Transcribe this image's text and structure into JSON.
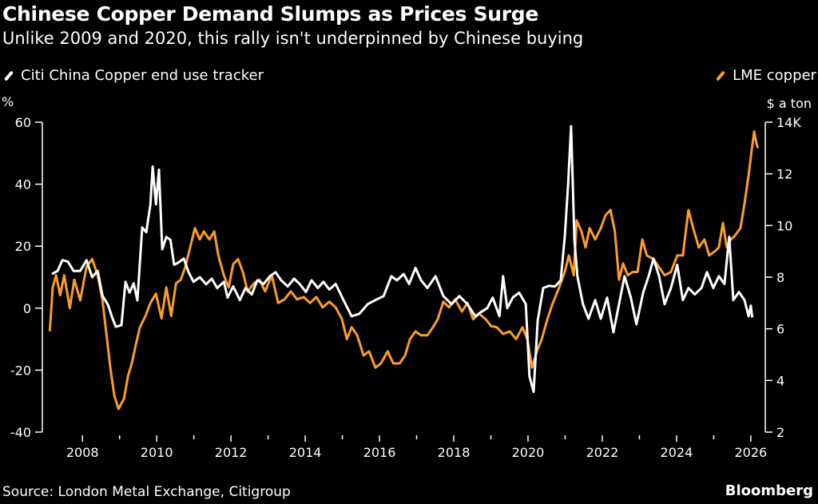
{
  "chart_data": {
    "type": "line",
    "title": "Chinese Copper Demand Slumps as Prices Surge",
    "subtitle": "Unlike 2009 and 2020, this rally isn't underpinned by Chinese buying",
    "source": "Source: London Metal Exchange, Citigroup",
    "brand": "Bloomberg",
    "xlim": [
      2006.92,
      2026.39
    ],
    "x_ticks": [
      2008,
      2010,
      2012,
      2014,
      2016,
      2018,
      2020,
      2022,
      2024,
      2026
    ],
    "x_tick_labels": [
      "2008",
      "2010",
      "2012",
      "2014",
      "2016",
      "2018",
      "2020",
      "2022",
      "2024",
      "2026"
    ],
    "x_minor_ticks": [
      2009,
      2011,
      2013,
      2015,
      2017,
      2019,
      2021,
      2023,
      2025
    ],
    "left_axis": {
      "unit": "%",
      "ylim": [
        -40,
        60
      ],
      "ticks": [
        -40,
        -20,
        0,
        20,
        40,
        60
      ],
      "tick_labels": [
        "-40",
        "-20",
        "0",
        "20",
        "40",
        "60"
      ]
    },
    "right_axis": {
      "unit": "$ a ton",
      "ylim": [
        2,
        14
      ],
      "ticks": [
        2,
        4,
        6,
        8,
        10,
        12,
        14
      ],
      "tick_labels": [
        "2",
        "4",
        "6",
        "8",
        "10",
        "12",
        "14K"
      ]
    },
    "grid": false,
    "legend_placement": "top",
    "series": [
      {
        "name": "Citi China Copper end use tracker",
        "axis": "left",
        "color": "#ffffff",
        "x": [
          2007.18,
          2007.33,
          2007.46,
          2007.61,
          2007.76,
          2007.94,
          2008.11,
          2008.26,
          2008.41,
          2008.54,
          2008.69,
          2008.8,
          2008.9,
          2009.05,
          2009.16,
          2009.27,
          2009.38,
          2009.48,
          2009.61,
          2009.72,
          2009.83,
          2009.89,
          2009.98,
          2010.06,
          2010.15,
          2010.26,
          2010.37,
          2010.47,
          2010.58,
          2010.73,
          2010.86,
          2010.99,
          2011.16,
          2011.33,
          2011.48,
          2011.63,
          2011.81,
          2011.91,
          2012.06,
          2012.24,
          2012.39,
          2012.56,
          2012.71,
          2012.88,
          2013.05,
          2013.2,
          2013.35,
          2013.53,
          2013.7,
          2013.85,
          2014.02,
          2014.17,
          2014.34,
          2014.49,
          2014.65,
          2014.82,
          2015.03,
          2015.25,
          2015.46,
          2015.68,
          2015.89,
          2016.11,
          2016.32,
          2016.47,
          2016.65,
          2016.8,
          2016.97,
          2017.12,
          2017.29,
          2017.51,
          2017.72,
          2017.94,
          2018.15,
          2018.37,
          2018.58,
          2018.73,
          2018.9,
          2019.05,
          2019.23,
          2019.33,
          2019.44,
          2019.59,
          2019.76,
          2019.94,
          2020.04,
          2020.15,
          2020.26,
          2020.41,
          2020.56,
          2020.73,
          2020.88,
          2020.99,
          2021.08,
          2021.16,
          2021.25,
          2021.33,
          2021.48,
          2021.63,
          2021.81,
          2021.96,
          2022.13,
          2022.3,
          2022.45,
          2022.6,
          2022.77,
          2022.92,
          2023.1,
          2023.25,
          2023.38,
          2023.53,
          2023.68,
          2023.85,
          2024.02,
          2024.17,
          2024.32,
          2024.49,
          2024.67,
          2024.82,
          2024.99,
          2025.14,
          2025.29,
          2025.42,
          2025.53,
          2025.68,
          2025.83,
          2025.94,
          2026.0,
          2026.04
        ],
        "values": [
          11,
          12,
          15.5,
          15,
          12,
          12,
          15.5,
          10,
          12,
          4,
          1,
          -3,
          -6,
          -5.5,
          8.5,
          5,
          8,
          2.5,
          26,
          24.5,
          33.5,
          45.7,
          33.5,
          44.7,
          19,
          23,
          22,
          14,
          14.7,
          16,
          11.6,
          8.5,
          10,
          7.7,
          9.5,
          6.5,
          8.5,
          3.4,
          7,
          2.6,
          6.5,
          4.4,
          9,
          7.8,
          10.3,
          11.6,
          9,
          7,
          9.5,
          7.8,
          5.2,
          9,
          6.5,
          8.5,
          6,
          7.8,
          2.6,
          -2.6,
          -1.8,
          1.3,
          2.6,
          3.9,
          10.3,
          9,
          11,
          7.8,
          13,
          9,
          6.5,
          10.3,
          3.9,
          1.3,
          3.9,
          1.3,
          -2.6,
          -1.3,
          0,
          3.4,
          -2.6,
          10.3,
          0,
          3.4,
          5,
          1.3,
          -22,
          -27,
          -4,
          6.5,
          7.2,
          7,
          9,
          23,
          40,
          58.7,
          22,
          10.3,
          1.3,
          -3.4,
          2.6,
          -3.4,
          3.4,
          -7.8,
          1.3,
          10.3,
          3.4,
          -5.2,
          5,
          10.3,
          16,
          10.3,
          1.3,
          6.5,
          14,
          2.6,
          6.5,
          4.4,
          6.5,
          11.6,
          6.5,
          10.3,
          7.8,
          23,
          2.6,
          5.2,
          2.6,
          -2.6,
          0.8,
          -3
        ]
      },
      {
        "name": "LME copper",
        "axis": "right",
        "color": "#fb9d2b",
        "x": [
          2007.12,
          2007.2,
          2007.29,
          2007.4,
          2007.51,
          2007.66,
          2007.78,
          2007.94,
          2008.11,
          2008.26,
          2008.41,
          2008.54,
          2008.65,
          2008.75,
          2008.86,
          2008.97,
          2009.12,
          2009.23,
          2009.33,
          2009.44,
          2009.55,
          2009.7,
          2009.83,
          2009.98,
          2010.13,
          2010.26,
          2010.39,
          2010.52,
          2010.65,
          2010.77,
          2010.9,
          2011.03,
          2011.16,
          2011.27,
          2011.42,
          2011.55,
          2011.66,
          2011.81,
          2011.94,
          2012.06,
          2012.19,
          2012.32,
          2012.45,
          2012.62,
          2012.77,
          2012.92,
          2013.1,
          2013.27,
          2013.44,
          2013.61,
          2013.78,
          2013.96,
          2014.13,
          2014.3,
          2014.47,
          2014.65,
          2014.82,
          2014.99,
          2015.12,
          2015.25,
          2015.4,
          2015.57,
          2015.72,
          2015.89,
          2016.04,
          2016.22,
          2016.37,
          2016.54,
          2016.69,
          2016.82,
          2016.97,
          2017.12,
          2017.29,
          2017.44,
          2017.57,
          2017.72,
          2017.87,
          2018.04,
          2018.22,
          2018.37,
          2018.52,
          2018.69,
          2018.86,
          2019.01,
          2019.16,
          2019.33,
          2019.51,
          2019.68,
          2019.85,
          2019.98,
          2020.11,
          2020.24,
          2020.37,
          2020.52,
          2020.67,
          2020.84,
          2020.99,
          2021.1,
          2021.23,
          2021.31,
          2021.44,
          2021.55,
          2021.66,
          2021.81,
          2021.96,
          2022.09,
          2022.22,
          2022.34,
          2022.45,
          2022.56,
          2022.69,
          2022.82,
          2022.95,
          2023.08,
          2023.2,
          2023.38,
          2023.53,
          2023.68,
          2023.85,
          2024.02,
          2024.17,
          2024.32,
          2024.45,
          2024.6,
          2024.75,
          2024.88,
          2025.03,
          2025.14,
          2025.25,
          2025.35,
          2025.46,
          2025.57,
          2025.72,
          2025.83,
          2025.94,
          2026.02,
          2026.09,
          2026.15,
          2026.19
        ],
        "values": [
          5.9,
          7.6,
          8.07,
          7.3,
          8.07,
          6.8,
          7.9,
          7.1,
          8.4,
          8.7,
          8.07,
          7.1,
          5.75,
          4.5,
          3.4,
          2.9,
          3.3,
          4.2,
          4.66,
          5.4,
          6.06,
          6.5,
          7.0,
          7.36,
          6.4,
          7.6,
          6.5,
          7.76,
          7.9,
          8.4,
          9.15,
          9.9,
          9.46,
          9.77,
          9.46,
          9.77,
          8.84,
          8.07,
          7.6,
          8.5,
          8.7,
          8.2,
          7.45,
          7.76,
          7.9,
          7.45,
          8.07,
          7.0,
          7.14,
          7.45,
          7.14,
          7.23,
          7.0,
          7.23,
          6.83,
          7.05,
          6.83,
          6.37,
          5.6,
          6.06,
          5.75,
          4.97,
          5.13,
          4.5,
          4.66,
          5.13,
          4.66,
          4.66,
          4.97,
          5.6,
          5.9,
          5.75,
          5.75,
          6.06,
          6.37,
          7.05,
          6.83,
          7.14,
          6.67,
          7.0,
          6.37,
          6.58,
          6.37,
          6.1,
          6.06,
          5.8,
          5.9,
          5.6,
          6.06,
          5.6,
          4.5,
          5.13,
          5.6,
          6.37,
          7.0,
          7.6,
          8.2,
          8.84,
          8.07,
          10.2,
          9.77,
          9.15,
          9.9,
          9.46,
          9.9,
          10.4,
          10.6,
          9.77,
          7.9,
          8.53,
          8.07,
          8.2,
          8.2,
          9.46,
          8.84,
          8.7,
          8.38,
          8.07,
          8.2,
          8.84,
          8.84,
          10.6,
          9.9,
          9.15,
          9.46,
          8.84,
          9.0,
          9.15,
          10.1,
          9.15,
          9.46,
          9.6,
          9.9,
          10.85,
          11.94,
          12.87,
          13.64,
          13.2,
          13.0
        ]
      }
    ]
  }
}
